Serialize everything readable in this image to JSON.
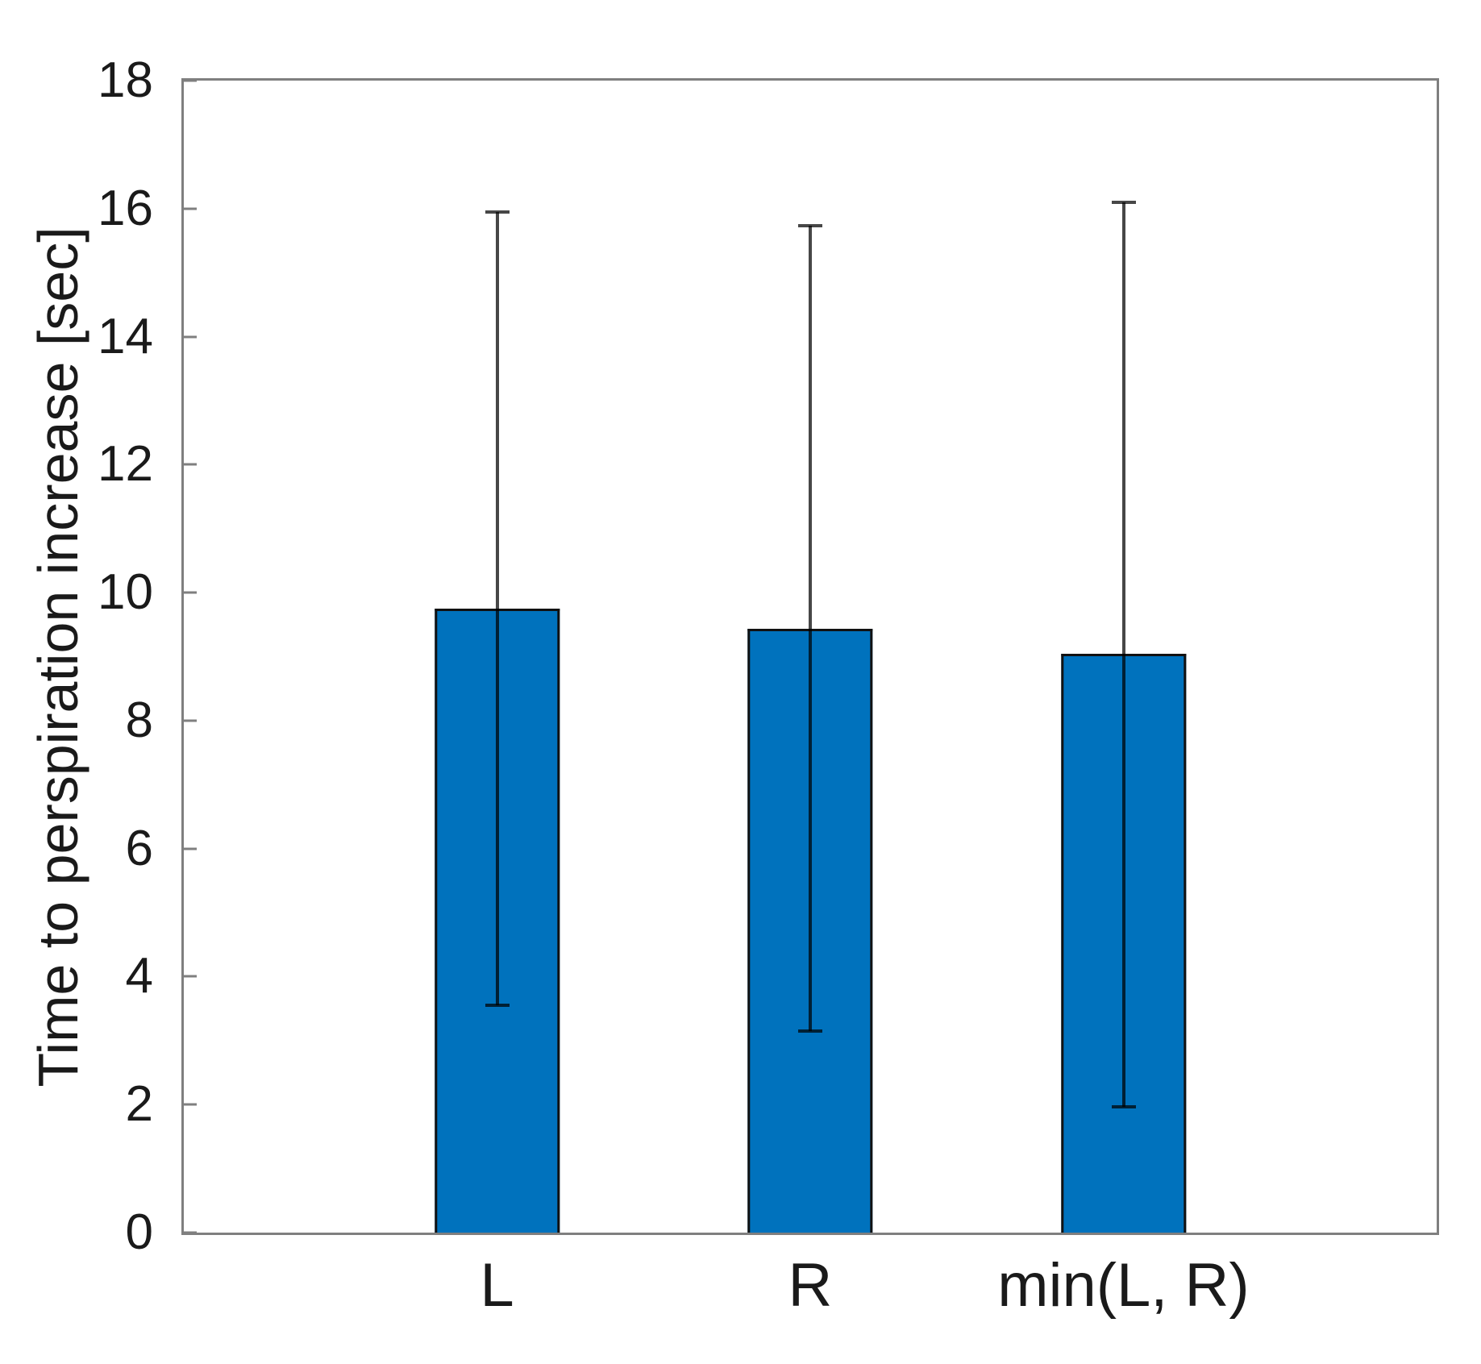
{
  "chart_data": {
    "type": "bar",
    "title": "",
    "xlabel": "",
    "ylabel": "Time to perspiration increase [sec]",
    "categories": [
      "L",
      "R",
      "min(L, R)"
    ],
    "values": [
      9.75,
      9.43,
      9.05
    ],
    "error_low": [
      3.55,
      3.15,
      1.97
    ],
    "error_high": [
      15.95,
      15.73,
      16.1
    ],
    "ylim": [
      0,
      18
    ],
    "y_ticks": [
      0,
      2,
      4,
      6,
      8,
      10,
      12,
      14,
      16,
      18
    ],
    "grid": false,
    "legend": null,
    "bar_color": "#0072BD",
    "bar_edge_color": "#111111",
    "errorbar_color": "rgba(0,0,0,0.72)",
    "axis_color": "#7f7f7f",
    "text_color": "#1a1a1a"
  }
}
